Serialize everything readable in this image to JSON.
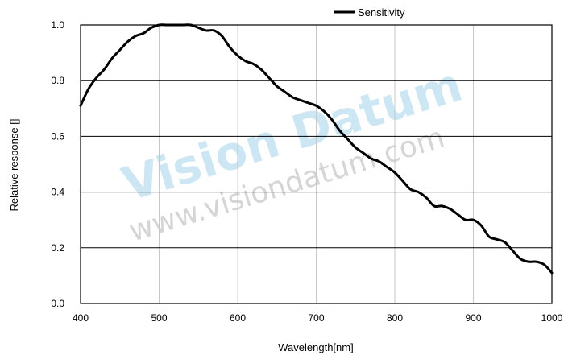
{
  "watermark": {
    "brand": "Vision Datum",
    "url": "www.visiondatum.com"
  },
  "chart_data": {
    "type": "line",
    "title": "",
    "xlabel": "Wavelength[nm]",
    "ylabel": "Relative response []",
    "xlim": [
      400,
      1000
    ],
    "ylim": [
      0,
      1.0
    ],
    "x_ticks": [
      "400",
      "500",
      "600",
      "700",
      "800",
      "900",
      "1000"
    ],
    "y_ticks": [
      "0.0",
      "0.2",
      "0.4",
      "0.6",
      "0.8",
      "1.0"
    ],
    "grid": true,
    "legend_position": "top-right",
    "series": [
      {
        "name": "Sensitivity",
        "color": "#000000",
        "x": [
          400,
          410,
          420,
          430,
          440,
          450,
          460,
          470,
          480,
          490,
          500,
          510,
          520,
          530,
          540,
          550,
          560,
          570,
          580,
          590,
          600,
          610,
          620,
          630,
          640,
          650,
          660,
          670,
          680,
          690,
          700,
          710,
          720,
          730,
          740,
          750,
          760,
          770,
          780,
          790,
          800,
          810,
          820,
          830,
          840,
          850,
          860,
          870,
          880,
          890,
          900,
          910,
          920,
          930,
          940,
          950,
          960,
          970,
          980,
          990,
          1000
        ],
        "y": [
          0.71,
          0.77,
          0.81,
          0.84,
          0.88,
          0.91,
          0.94,
          0.96,
          0.97,
          0.99,
          1.0,
          1.0,
          1.0,
          1.0,
          1.0,
          0.99,
          0.98,
          0.98,
          0.96,
          0.92,
          0.89,
          0.87,
          0.86,
          0.84,
          0.81,
          0.78,
          0.76,
          0.74,
          0.73,
          0.72,
          0.71,
          0.69,
          0.66,
          0.62,
          0.59,
          0.56,
          0.54,
          0.52,
          0.51,
          0.49,
          0.47,
          0.44,
          0.41,
          0.4,
          0.38,
          0.35,
          0.35,
          0.34,
          0.32,
          0.3,
          0.3,
          0.28,
          0.24,
          0.23,
          0.22,
          0.19,
          0.16,
          0.15,
          0.15,
          0.14,
          0.11
        ]
      }
    ]
  }
}
